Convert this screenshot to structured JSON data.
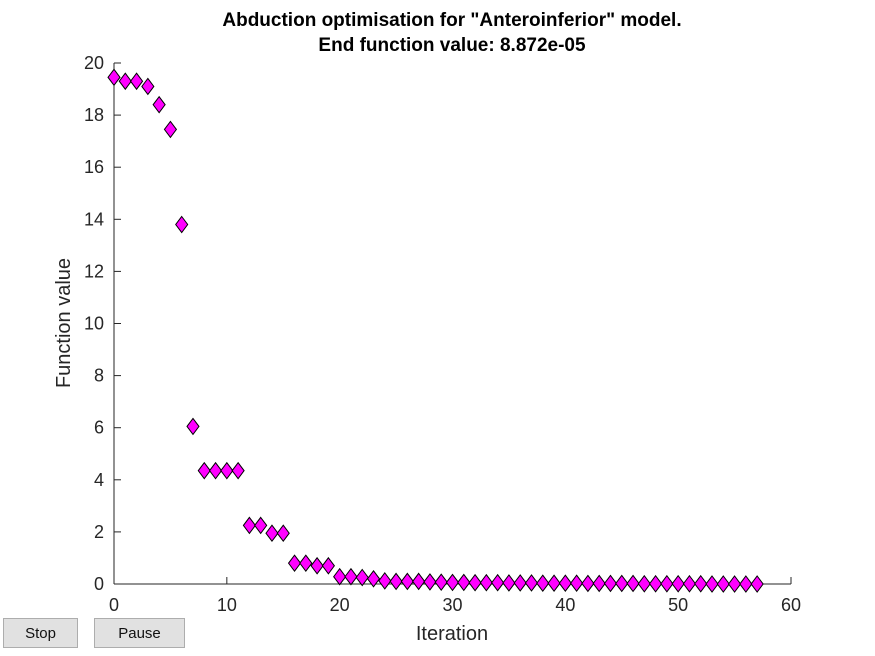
{
  "controls": {
    "stop_label": "Stop",
    "pause_label": "Pause"
  },
  "chart_data": {
    "type": "scatter",
    "title_line1": "Abduction optimisation for \"Anteroinferior\" model.",
    "title_line2": "End function value: 8.872e-05",
    "xlabel": "Iteration",
    "ylabel": "Function value",
    "xlim": [
      0,
      60
    ],
    "ylim": [
      0,
      20
    ],
    "xticks": [
      0,
      10,
      20,
      30,
      40,
      50,
      60
    ],
    "yticks": [
      0,
      2,
      4,
      6,
      8,
      10,
      12,
      14,
      16,
      18,
      20
    ],
    "grid": false,
    "marker": "diamond",
    "marker_color": "#ff00ff",
    "marker_edge_color": "#000000",
    "x": [
      0,
      1,
      2,
      3,
      4,
      5,
      6,
      7,
      8,
      9,
      10,
      11,
      12,
      13,
      14,
      15,
      16,
      17,
      18,
      19,
      20,
      21,
      22,
      23,
      24,
      25,
      26,
      27,
      28,
      29,
      30,
      31,
      32,
      33,
      34,
      35,
      36,
      37,
      38,
      39,
      40,
      41,
      42,
      43,
      44,
      45,
      46,
      47,
      48,
      49,
      50,
      51,
      52,
      53,
      54,
      55,
      56,
      57
    ],
    "y": [
      19.45,
      19.3,
      19.3,
      19.1,
      18.4,
      17.45,
      13.8,
      6.05,
      4.35,
      4.35,
      4.35,
      4.35,
      2.25,
      2.25,
      1.95,
      1.95,
      0.8,
      0.8,
      0.7,
      0.7,
      0.28,
      0.28,
      0.25,
      0.2,
      0.12,
      0.1,
      0.1,
      0.1,
      0.08,
      0.07,
      0.06,
      0.06,
      0.05,
      0.05,
      0.05,
      0.04,
      0.04,
      0.04,
      0.03,
      0.03,
      0.03,
      0.03,
      0.02,
      0.02,
      0.02,
      0.02,
      0.02,
      0.01,
      0.01,
      0.01,
      0.01,
      0.01,
      0.01,
      0.0,
      0.0,
      0.0,
      0.0,
      0.0
    ]
  }
}
